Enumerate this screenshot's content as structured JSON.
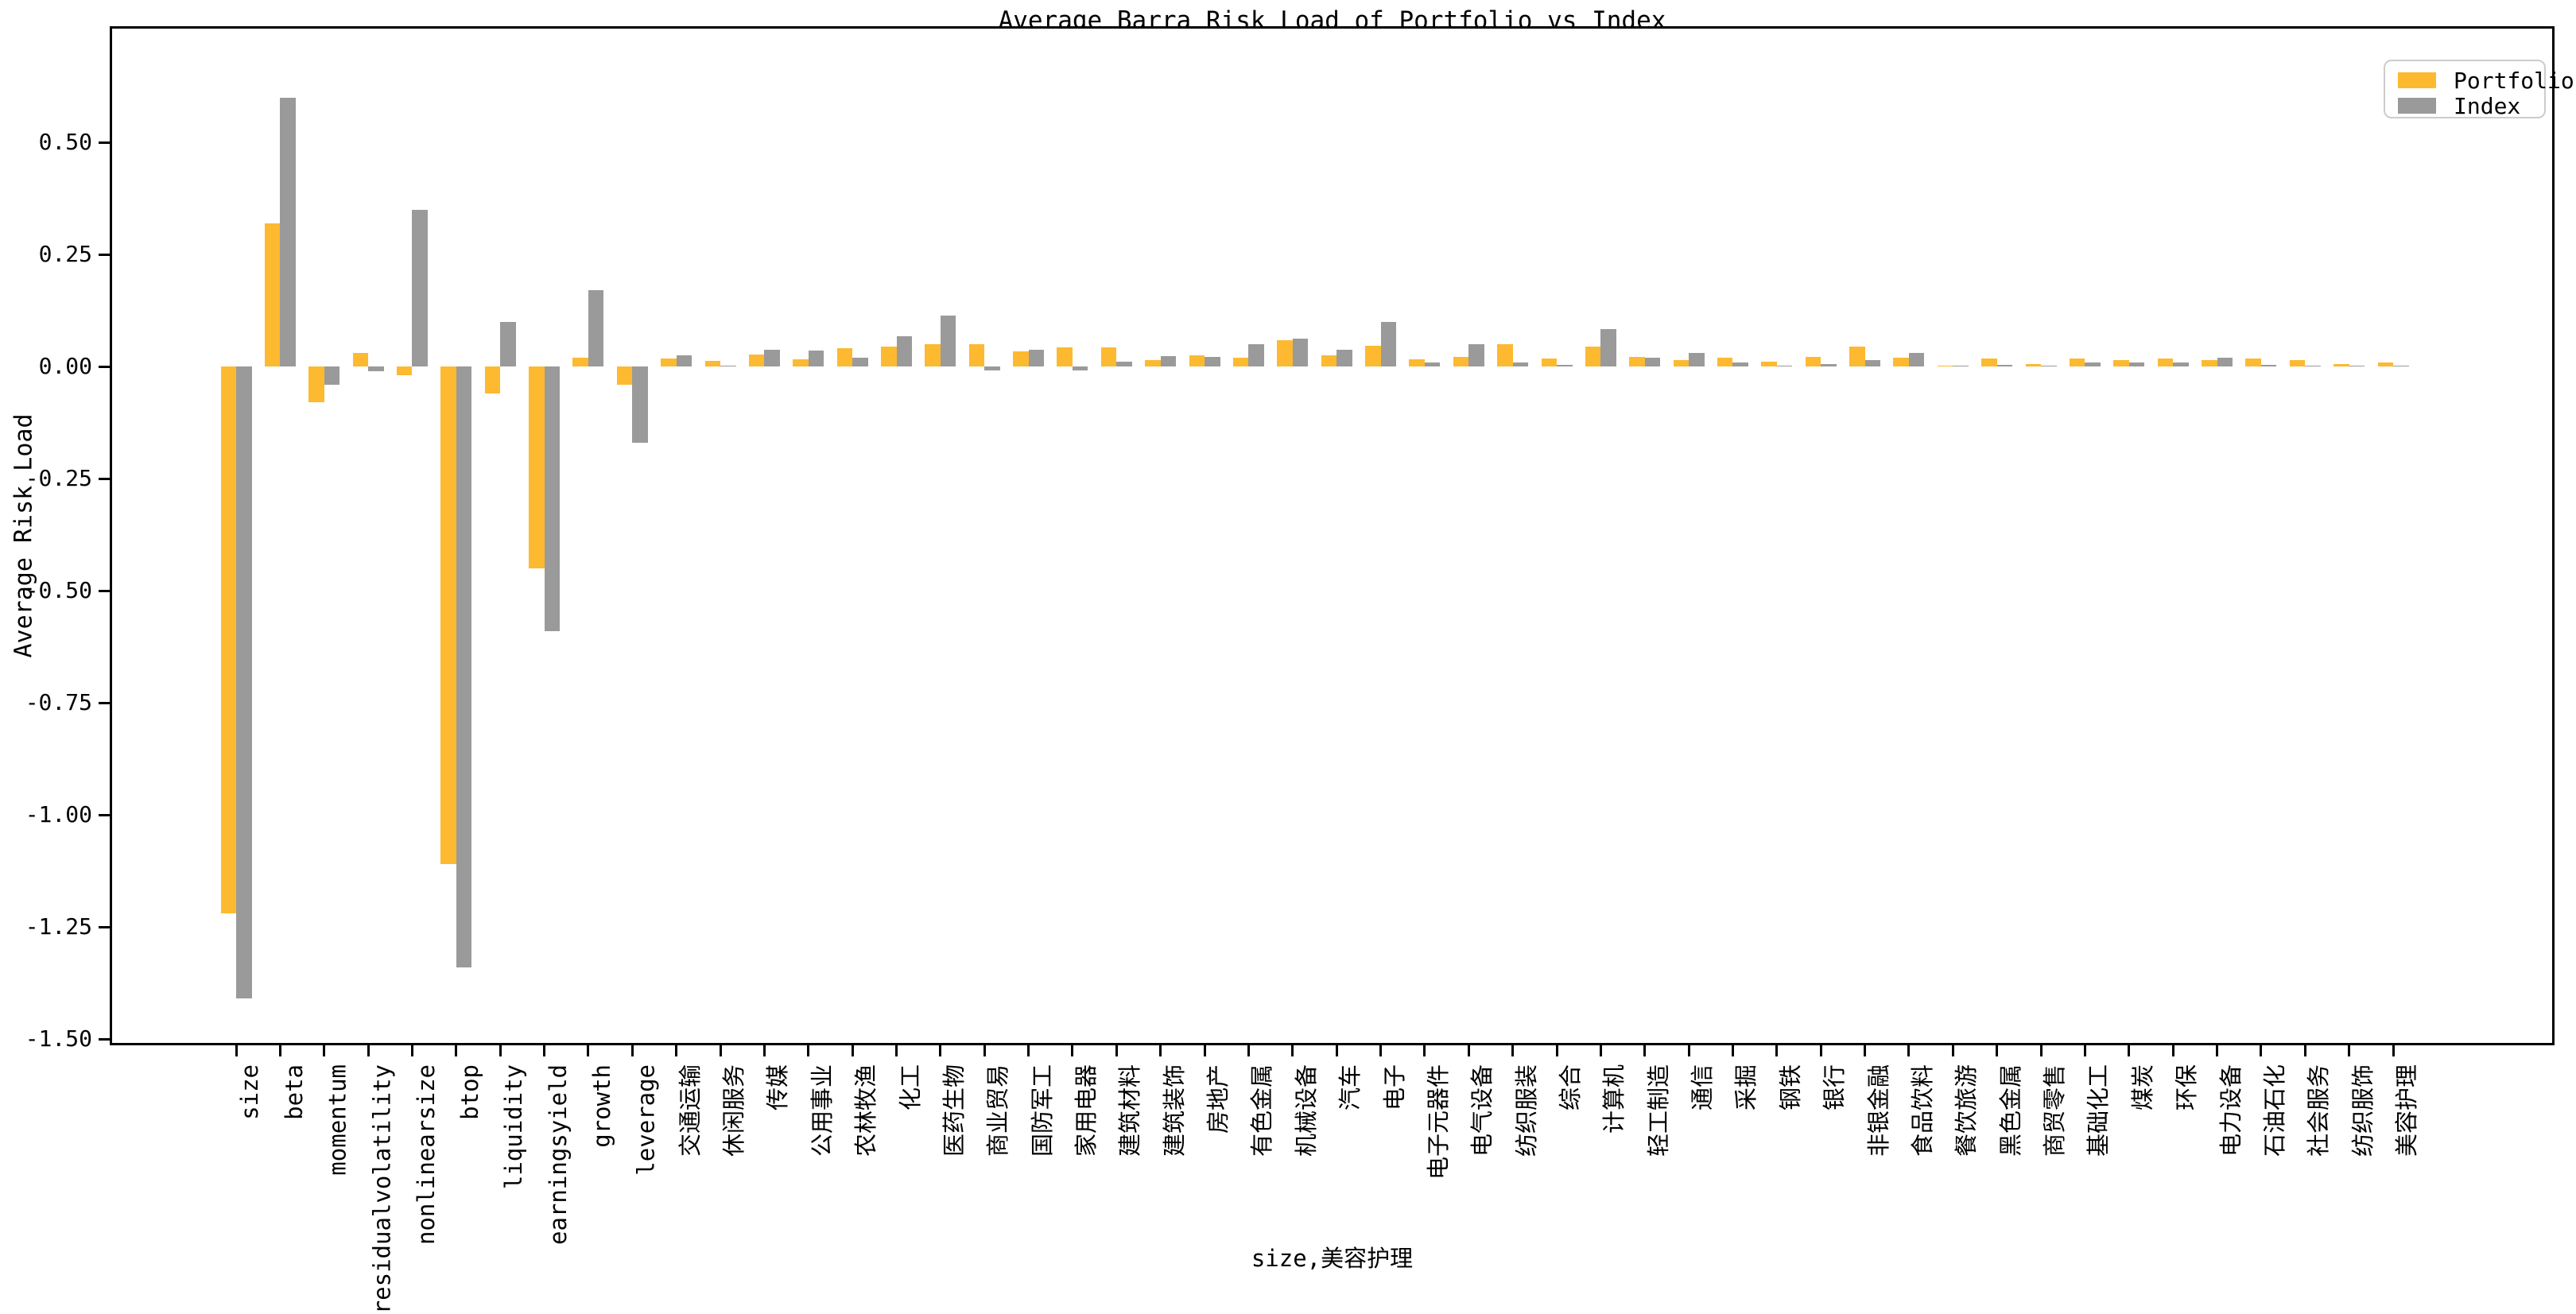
{
  "title": "Average Barra Risk Load of Portfolio vs Index",
  "axes": {
    "ylabel": "Average Risk Load",
    "xlabel": "size,美容护理",
    "y_ticks": [
      "0.50",
      "0.25",
      "0.00",
      "-0.25",
      "-0.50",
      "-0.75",
      "-1.00",
      "-1.25",
      "-1.50"
    ],
    "y_tick_values": [
      0.5,
      0.25,
      0.0,
      -0.25,
      -0.5,
      -0.75,
      -1.0,
      -1.25,
      -1.5
    ]
  },
  "legend": {
    "items": [
      {
        "label": "Portfolio",
        "color": "#FDB930"
      },
      {
        "label": "Index",
        "color": "#9A9A9A"
      }
    ]
  },
  "chart_data": {
    "type": "bar",
    "title": "Average Barra Risk Load of Portfolio vs Index",
    "xlabel": "size,美容护理",
    "ylabel": "Average Risk Load",
    "ylim": [
      -1.51,
      0.74
    ],
    "grid": false,
    "legend_position": "upper right",
    "categories": [
      "size",
      "beta",
      "momentum",
      "residualvolatility",
      "nonlinearsize",
      "btop",
      "liquidity",
      "earningsyield",
      "growth",
      "leverage",
      "交通运输",
      "休闲服务",
      "传媒",
      "公用事业",
      "农林牧渔",
      "化工",
      "医药生物",
      "商业贸易",
      "国防军工",
      "家用电器",
      "建筑材料",
      "建筑装饰",
      "房地产",
      "有色金属",
      "机械设备",
      "汽车",
      "电子",
      "电子元器件",
      "电气设备",
      "纺织服装",
      "综合",
      "计算机",
      "轻工制造",
      "通信",
      "采掘",
      "钢铁",
      "银行",
      "非银金融",
      "食品饮料",
      "餐饮旅游",
      "黑色金属",
      "商贸零售",
      "基础化工",
      "煤炭",
      "环保",
      "电力设备",
      "石油石化",
      "社会服务",
      "纺织服饰",
      "美容护理"
    ],
    "series": [
      {
        "name": "Portfolio",
        "color": "#FDB930",
        "values": [
          -1.22,
          0.32,
          -0.08,
          0.03,
          -0.02,
          -1.11,
          -0.06,
          -0.45,
          0.02,
          -0.04,
          0.018,
          0.012,
          0.027,
          0.016,
          0.041,
          0.044,
          0.049,
          0.049,
          0.034,
          0.043,
          0.043,
          0.015,
          0.024,
          0.02,
          0.058,
          0.024,
          0.046,
          0.016,
          0.021,
          0.05,
          0.018,
          0.045,
          0.021,
          0.014,
          0.019,
          0.01,
          0.022,
          0.044,
          0.02,
          0.002,
          0.018,
          0.006,
          0.018,
          0.014,
          0.018,
          0.015,
          0.017,
          0.015,
          0.006,
          0.009
        ]
      },
      {
        "name": "Index",
        "color": "#9A9A9A",
        "values": [
          -1.41,
          0.6,
          -0.04,
          -0.01,
          0.35,
          -1.34,
          0.1,
          -0.59,
          0.17,
          -0.17,
          0.025,
          0.002,
          0.038,
          0.035,
          0.02,
          0.068,
          0.114,
          -0.008,
          0.037,
          -0.008,
          0.01,
          0.023,
          0.022,
          0.05,
          0.062,
          0.037,
          0.099,
          0.009,
          0.049,
          0.008,
          0.003,
          0.083,
          0.02,
          0.031,
          0.008,
          0.002,
          0.006,
          0.015,
          0.031,
          0.0,
          0.004,
          0.001,
          0.008,
          0.008,
          0.009,
          0.019,
          0.004,
          0.001,
          0.0,
          0.001
        ]
      }
    ]
  }
}
